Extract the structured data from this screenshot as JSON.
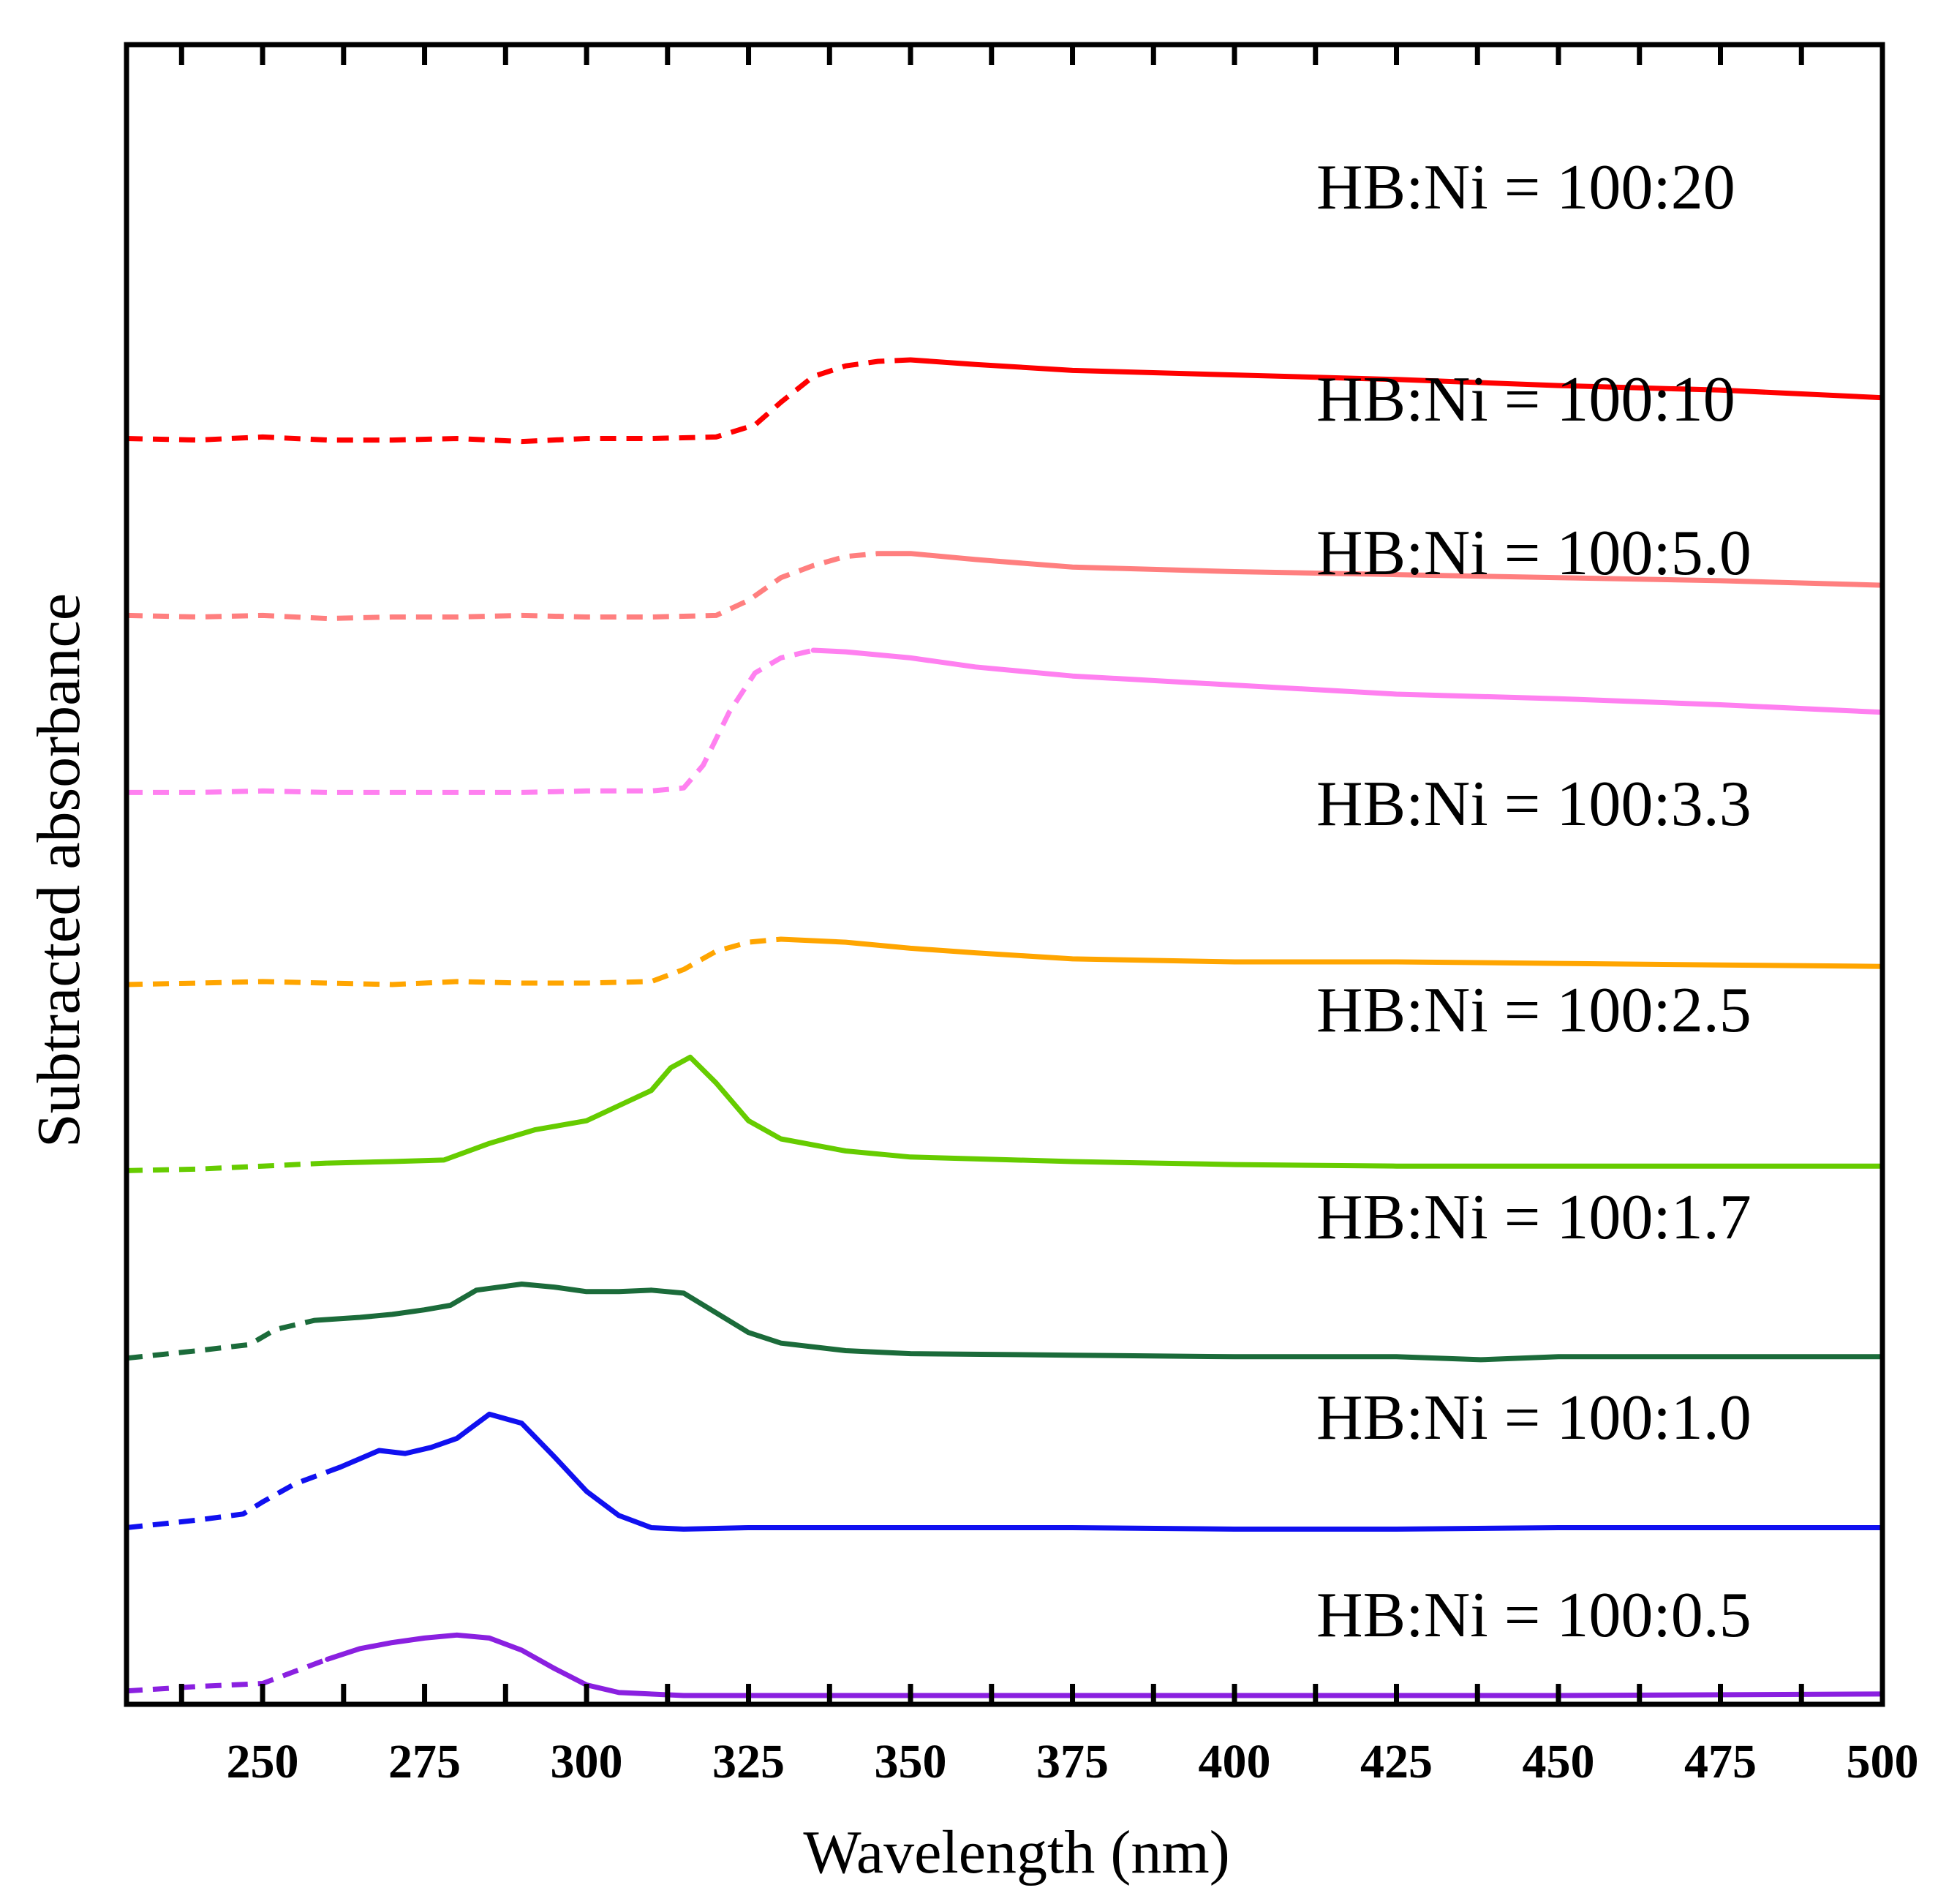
{
  "chart_data": {
    "type": "line",
    "title": "",
    "xlabel": "Wavelength (nm)",
    "ylabel": "Subtracted absorbance",
    "xlim": [
      229,
      500
    ],
    "ylim": [
      0,
      10
    ],
    "xticks": [
      250,
      275,
      300,
      325,
      350,
      375,
      400,
      425,
      450,
      475,
      500
    ],
    "xtick_labels": [
      "250",
      "275",
      "300",
      "325",
      "350",
      "375",
      "400",
      "425",
      "450",
      "475",
      "500"
    ],
    "grid": false,
    "dashed_segments_note": "portion of each curve drawn dashed",
    "series": [
      {
        "name": "HB:Ni = 100:20",
        "color": "#ff0000",
        "dashed_until": 350,
        "points": [
          [
            229,
            8.31
          ],
          [
            240,
            8.3
          ],
          [
            250,
            8.32
          ],
          [
            260,
            8.3
          ],
          [
            270,
            8.3
          ],
          [
            280,
            8.31
          ],
          [
            290,
            8.29
          ],
          [
            300,
            8.31
          ],
          [
            310,
            8.31
          ],
          [
            320,
            8.32
          ],
          [
            326,
            8.4
          ],
          [
            330,
            8.55
          ],
          [
            335,
            8.72
          ],
          [
            340,
            8.79
          ],
          [
            345,
            8.82
          ],
          [
            350,
            8.83
          ],
          [
            360,
            8.8
          ],
          [
            375,
            8.76
          ],
          [
            400,
            8.73
          ],
          [
            425,
            8.7
          ],
          [
            450,
            8.66
          ],
          [
            475,
            8.63
          ],
          [
            500,
            8.58
          ]
        ]
      },
      {
        "name": "HB:Ni = 100:10",
        "color": "#ff7f7f",
        "dashed_until": 345,
        "points": [
          [
            229,
            7.14
          ],
          [
            240,
            7.13
          ],
          [
            250,
            7.14
          ],
          [
            260,
            7.12
          ],
          [
            270,
            7.13
          ],
          [
            280,
            7.13
          ],
          [
            290,
            7.14
          ],
          [
            300,
            7.13
          ],
          [
            310,
            7.13
          ],
          [
            320,
            7.14
          ],
          [
            325,
            7.24
          ],
          [
            330,
            7.39
          ],
          [
            335,
            7.47
          ],
          [
            340,
            7.53
          ],
          [
            345,
            7.55
          ],
          [
            350,
            7.55
          ],
          [
            360,
            7.51
          ],
          [
            375,
            7.46
          ],
          [
            400,
            7.43
          ],
          [
            425,
            7.41
          ],
          [
            450,
            7.39
          ],
          [
            475,
            7.37
          ],
          [
            500,
            7.34
          ]
        ]
      },
      {
        "name": "HB:Ni = 100:5.0",
        "color": "#ff80f0",
        "dashed_until": 335,
        "points": [
          [
            229,
            5.97
          ],
          [
            240,
            5.97
          ],
          [
            250,
            5.98
          ],
          [
            260,
            5.97
          ],
          [
            270,
            5.97
          ],
          [
            280,
            5.97
          ],
          [
            290,
            5.97
          ],
          [
            300,
            5.98
          ],
          [
            310,
            5.98
          ],
          [
            315,
            6.0
          ],
          [
            318,
            6.15
          ],
          [
            322,
            6.5
          ],
          [
            326,
            6.76
          ],
          [
            330,
            6.86
          ],
          [
            335,
            6.91
          ],
          [
            340,
            6.9
          ],
          [
            350,
            6.86
          ],
          [
            360,
            6.8
          ],
          [
            375,
            6.74
          ],
          [
            400,
            6.68
          ],
          [
            425,
            6.62
          ],
          [
            450,
            6.59
          ],
          [
            475,
            6.55
          ],
          [
            500,
            6.5
          ]
        ]
      },
      {
        "name": "HB:Ni = 100:3.3",
        "color": "#ffa500",
        "dashed_until": 330,
        "points": [
          [
            229,
            4.7
          ],
          [
            240,
            4.71
          ],
          [
            250,
            4.72
          ],
          [
            260,
            4.71
          ],
          [
            270,
            4.7
          ],
          [
            280,
            4.72
          ],
          [
            290,
            4.71
          ],
          [
            300,
            4.71
          ],
          [
            310,
            4.72
          ],
          [
            315,
            4.8
          ],
          [
            320,
            4.92
          ],
          [
            325,
            4.98
          ],
          [
            330,
            5.0
          ],
          [
            340,
            4.98
          ],
          [
            350,
            4.94
          ],
          [
            360,
            4.91
          ],
          [
            375,
            4.87
          ],
          [
            400,
            4.85
          ],
          [
            425,
            4.85
          ],
          [
            450,
            4.84
          ],
          [
            475,
            4.83
          ],
          [
            500,
            4.82
          ]
        ]
      },
      {
        "name": "HB:Ni = 100:2.5",
        "color": "#66cc00",
        "dashed_until": 260,
        "points": [
          [
            229,
            3.47
          ],
          [
            240,
            3.48
          ],
          [
            250,
            3.5
          ],
          [
            260,
            3.52
          ],
          [
            270,
            3.53
          ],
          [
            278,
            3.54
          ],
          [
            285,
            3.65
          ],
          [
            292,
            3.74
          ],
          [
            300,
            3.8
          ],
          [
            305,
            3.9
          ],
          [
            310,
            4.0
          ],
          [
            313,
            4.15
          ],
          [
            316,
            4.22
          ],
          [
            320,
            4.05
          ],
          [
            325,
            3.8
          ],
          [
            330,
            3.68
          ],
          [
            340,
            3.6
          ],
          [
            350,
            3.56
          ],
          [
            375,
            3.53
          ],
          [
            400,
            3.51
          ],
          [
            425,
            3.5
          ],
          [
            450,
            3.5
          ],
          [
            475,
            3.5
          ],
          [
            500,
            3.5
          ]
        ]
      },
      {
        "name": "HB:Ni = 100:1.7",
        "color": "#1b6b3a",
        "dashed_until": 262,
        "points": [
          [
            229,
            2.23
          ],
          [
            240,
            2.28
          ],
          [
            248,
            2.32
          ],
          [
            252,
            2.42
          ],
          [
            258,
            2.48
          ],
          [
            265,
            2.5
          ],
          [
            270,
            2.52
          ],
          [
            275,
            2.55
          ],
          [
            279,
            2.58
          ],
          [
            283,
            2.68
          ],
          [
            290,
            2.72
          ],
          [
            295,
            2.7
          ],
          [
            300,
            2.67
          ],
          [
            305,
            2.67
          ],
          [
            310,
            2.68
          ],
          [
            315,
            2.66
          ],
          [
            320,
            2.53
          ],
          [
            325,
            2.4
          ],
          [
            330,
            2.33
          ],
          [
            340,
            2.28
          ],
          [
            350,
            2.26
          ],
          [
            375,
            2.25
          ],
          [
            400,
            2.24
          ],
          [
            425,
            2.24
          ],
          [
            438,
            2.22
          ],
          [
            450,
            2.24
          ],
          [
            475,
            2.24
          ],
          [
            500,
            2.24
          ]
        ]
      },
      {
        "name": "HB:Ni = 100:1.0",
        "color": "#1010f0",
        "dashed_until": 262,
        "points": [
          [
            229,
            1.11
          ],
          [
            240,
            1.16
          ],
          [
            247,
            1.2
          ],
          [
            250,
            1.28
          ],
          [
            255,
            1.4
          ],
          [
            262,
            1.51
          ],
          [
            268,
            1.62
          ],
          [
            272,
            1.6
          ],
          [
            276,
            1.64
          ],
          [
            280,
            1.7
          ],
          [
            285,
            1.86
          ],
          [
            290,
            1.8
          ],
          [
            295,
            1.58
          ],
          [
            300,
            1.35
          ],
          [
            305,
            1.19
          ],
          [
            310,
            1.11
          ],
          [
            315,
            1.1
          ],
          [
            325,
            1.11
          ],
          [
            350,
            1.11
          ],
          [
            375,
            1.11
          ],
          [
            400,
            1.1
          ],
          [
            425,
            1.1
          ],
          [
            450,
            1.11
          ],
          [
            475,
            1.11
          ],
          [
            500,
            1.11
          ]
        ]
      },
      {
        "name": "HB:Ni = 100:0.5",
        "color": "#8a20e0",
        "dashed_until": 260,
        "points": [
          [
            229,
            0.03
          ],
          [
            240,
            0.06
          ],
          [
            250,
            0.08
          ],
          [
            255,
            0.16
          ],
          [
            260,
            0.24
          ],
          [
            265,
            0.31
          ],
          [
            270,
            0.35
          ],
          [
            275,
            0.38
          ],
          [
            280,
            0.4
          ],
          [
            285,
            0.38
          ],
          [
            290,
            0.3
          ],
          [
            295,
            0.18
          ],
          [
            300,
            0.07
          ],
          [
            305,
            0.02
          ],
          [
            315,
            0.0
          ],
          [
            350,
            0.0
          ],
          [
            400,
            0.0
          ],
          [
            450,
            0.0
          ],
          [
            500,
            0.01
          ]
        ]
      }
    ]
  }
}
